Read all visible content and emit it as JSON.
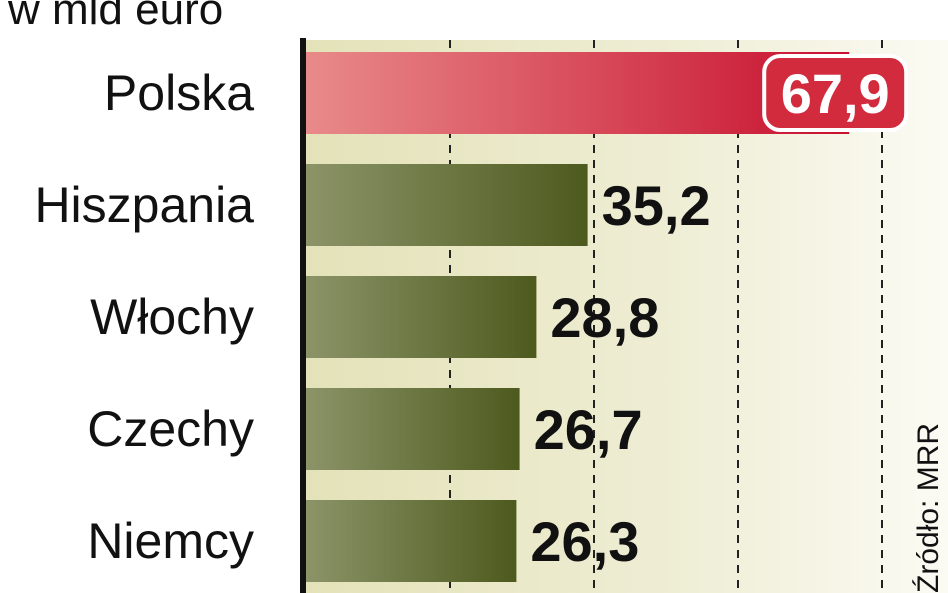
{
  "chart_data": {
    "type": "bar",
    "orientation": "horizontal",
    "subtitle": "w mld euro",
    "source": "Źródło: MRR",
    "categories": [
      "Polska",
      "Hiszpania",
      "Włochy",
      "Czechy",
      "Niemcy"
    ],
    "values": [
      67.9,
      35.2,
      28.8,
      26.7,
      26.3
    ],
    "value_labels": [
      "67,9",
      "35,2",
      "28,8",
      "26,7",
      "26,3"
    ],
    "highlight_index": 0,
    "xlim": [
      0,
      72
    ],
    "gridlines": [
      18,
      36,
      54,
      72
    ],
    "grid": "dashed vertical",
    "colors": {
      "highlight_bar": "#d22b3e",
      "bar": "#5b6a2a",
      "background": "#ece8c8",
      "axis": "#111111"
    }
  }
}
